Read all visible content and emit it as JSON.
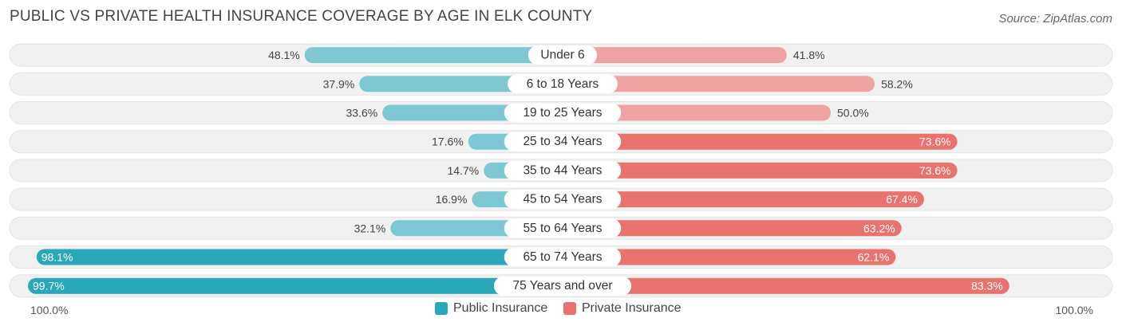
{
  "title": "PUBLIC VS PRIVATE HEALTH INSURANCE COVERAGE BY AGE IN ELK COUNTY",
  "source": "Source: ZipAtlas.com",
  "colors": {
    "public_light": "#7dc8d3",
    "public_dark": "#29a8b9",
    "private_light": "#f0a3a3",
    "private_dark": "#e8726e",
    "row_bg": "#f1f1f1"
  },
  "axis": {
    "left_label": "100.0%",
    "right_label": "100.0%"
  },
  "legend": {
    "public": "Public Insurance",
    "private": "Private Insurance"
  },
  "chart_data": {
    "type": "bar",
    "orientation": "horizontal-diverging",
    "categories": [
      "Under 6",
      "6 to 18 Years",
      "19 to 25 Years",
      "25 to 34 Years",
      "35 to 44 Years",
      "45 to 54 Years",
      "55 to 64 Years",
      "65 to 74 Years",
      "75 Years and over"
    ],
    "series": [
      {
        "name": "Public Insurance",
        "values": [
          48.1,
          37.9,
          33.6,
          17.6,
          14.7,
          16.9,
          32.1,
          98.1,
          99.7
        ]
      },
      {
        "name": "Private Insurance",
        "values": [
          41.8,
          58.2,
          50.0,
          73.6,
          73.6,
          67.4,
          63.2,
          62.1,
          83.3
        ]
      }
    ],
    "value_labels_public": [
      "48.1%",
      "37.9%",
      "33.6%",
      "17.6%",
      "14.7%",
      "16.9%",
      "32.1%",
      "98.1%",
      "99.7%"
    ],
    "value_labels_private": [
      "41.8%",
      "58.2%",
      "50.0%",
      "73.6%",
      "73.6%",
      "67.4%",
      "63.2%",
      "62.1%",
      "83.3%"
    ],
    "xlim": [
      -100,
      100
    ],
    "legend_position": "bottom-center",
    "grid": false
  }
}
